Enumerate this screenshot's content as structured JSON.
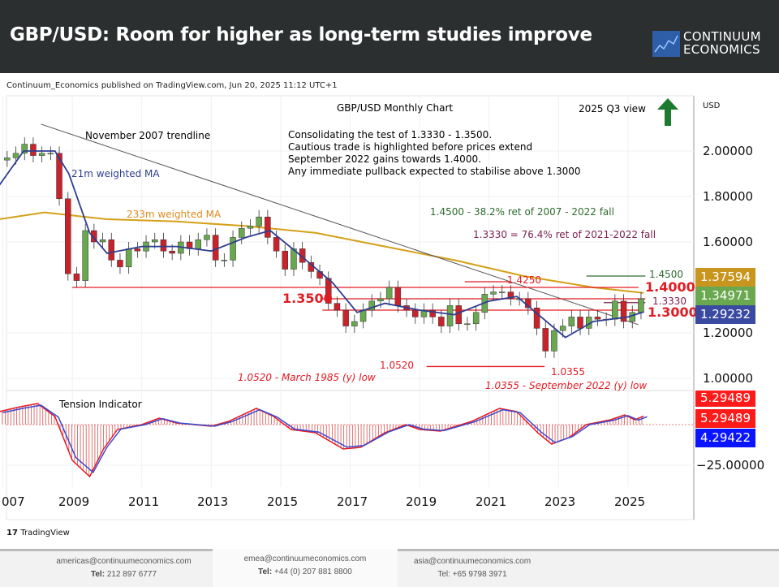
{
  "header": {
    "title": "GBP/USD: Room for higher as long-term studies improve",
    "logo_line1": "CONTINUUM",
    "logo_line2": "ECONOMICS"
  },
  "published": "Continuum_Economics published on TradingView.com, Jun 20, 2025 11:12 UTC+1",
  "footer": {
    "brand": "TradingView",
    "contacts": [
      {
        "email": "americas@continuumeconomics.com",
        "tel_label": "Tel:",
        "tel": "212 897 6777"
      },
      {
        "email": "emea@continuumeconomics.com",
        "tel_label": "Tel:",
        "tel": "+44 (0) 207 881 8800"
      },
      {
        "email": "asia@continuumeconomics.com",
        "tel_label": "Tel:",
        "tel": "+65 9798 3971"
      }
    ]
  },
  "colors": {
    "up": "#6aa84f",
    "down": "#c8232b",
    "ma21": "#2e3e91",
    "ma233": "#d4a017",
    "level": "#e31b23",
    "green_level": "#2e6b2e",
    "purple_level": "#7a1f4f",
    "arrow": "#1e7a2e"
  },
  "chart_data": {
    "type": "candlestick",
    "title": "GBP/USD Monthly Chart",
    "view_label": "2025 Q3 view",
    "view_direction": "up",
    "currency": "USD",
    "y_ticks": [
      "2.00000",
      "1.80000",
      "1.60000",
      "1.20000",
      "1.00000"
    ],
    "y_tick_values": [
      2.0,
      1.8,
      1.6,
      1.2,
      1.0
    ],
    "x_ticks": [
      "007",
      "2009",
      "2011",
      "2013",
      "2015",
      "2017",
      "2019",
      "2021",
      "2023",
      "2025"
    ],
    "x_tick_values": [
      2007,
      2009,
      2011,
      2013,
      2015,
      2017,
      2019,
      2021,
      2023,
      2025
    ],
    "grid": true,
    "closes_quarterly": {
      "start": 2007.0,
      "values": [
        1.97,
        1.99,
        2.03,
        1.98,
        1.99,
        1.99,
        1.79,
        1.46,
        1.43,
        1.65,
        1.6,
        1.61,
        1.52,
        1.49,
        1.57,
        1.56,
        1.6,
        1.61,
        1.56,
        1.55,
        1.6,
        1.57,
        1.61,
        1.63,
        1.52,
        1.52,
        1.62,
        1.66,
        1.67,
        1.71,
        1.62,
        1.56,
        1.48,
        1.57,
        1.51,
        1.47,
        1.44,
        1.33,
        1.3,
        1.23,
        1.25,
        1.3,
        1.34,
        1.35,
        1.4,
        1.32,
        1.3,
        1.27,
        1.3,
        1.27,
        1.23,
        1.32,
        1.24,
        1.24,
        1.29,
        1.37,
        1.38,
        1.38,
        1.35,
        1.35,
        1.31,
        1.22,
        1.12,
        1.21,
        1.23,
        1.27,
        1.22,
        1.27,
        1.26,
        1.26,
        1.34,
        1.25,
        1.29,
        1.35
      ]
    },
    "ma21": {
      "label": "21m weighted MA",
      "points": [
        [
          2006.9,
          1.85
        ],
        [
          2007.6,
          2.0
        ],
        [
          2008.5,
          2.0
        ],
        [
          2008.9,
          1.9
        ],
        [
          2009.5,
          1.64
        ],
        [
          2010,
          1.55
        ],
        [
          2011,
          1.58
        ],
        [
          2012,
          1.58
        ],
        [
          2013,
          1.56
        ],
        [
          2014,
          1.62
        ],
        [
          2014.7,
          1.65
        ],
        [
          2015.5,
          1.55
        ],
        [
          2016.5,
          1.42
        ],
        [
          2017.2,
          1.29
        ],
        [
          2018,
          1.33
        ],
        [
          2019,
          1.3
        ],
        [
          2020,
          1.28
        ],
        [
          2021,
          1.34
        ],
        [
          2021.8,
          1.36
        ],
        [
          2022.5,
          1.27
        ],
        [
          2023.2,
          1.18
        ],
        [
          2024,
          1.25
        ],
        [
          2025,
          1.27
        ],
        [
          2025.45,
          1.292
        ]
      ]
    },
    "ma233": {
      "label": "233m weighted MA",
      "points": [
        [
          2006.9,
          1.7
        ],
        [
          2008.2,
          1.73
        ],
        [
          2010,
          1.7
        ],
        [
          2012,
          1.69
        ],
        [
          2014,
          1.67
        ],
        [
          2016,
          1.64
        ],
        [
          2018,
          1.58
        ],
        [
          2020,
          1.52
        ],
        [
          2022,
          1.45
        ],
        [
          2024,
          1.4
        ],
        [
          2025.45,
          1.376
        ]
      ]
    },
    "trendline": {
      "label": "November 2007 trendline",
      "from": [
        2008.1,
        2.118
      ],
      "to": [
        2025.3,
        1.236
      ]
    },
    "levels": [
      {
        "price": 1.4,
        "label": "1.4000"
      },
      {
        "price": 1.35,
        "label": "1.3500"
      },
      {
        "price": 1.3,
        "label": "1.3000"
      },
      {
        "price": 1.45,
        "label": "1.4500"
      },
      {
        "price": 1.425,
        "label": "1.4250"
      },
      {
        "price": 1.333,
        "label": "1.3330"
      },
      {
        "price": 1.052,
        "label": "1.0520"
      },
      {
        "price": 1.0355,
        "label": "1.0355"
      }
    ],
    "price_tags": [
      "1.37594",
      "1.34971",
      "1.29232"
    ],
    "annotations": {
      "commentary": [
        "Consolidating the test of 1.3330 - 1.3500.",
        "Cautious trade is highlighted before prices extend",
        "September 2022 gains towards 1.4000.",
        "Any immediate pullback expected to stabilise above 1.3000"
      ],
      "fib1": "1.4500 - 38.2% ret of 2007 - 2022 fall",
      "fib2": "1.3330 = 76.4% ret of 2021-2022 fall",
      "low1985": "1.0520 - March 1985 (y) low",
      "low2022": "1.0355 - September 2022 (y) low"
    },
    "indicator": {
      "label": "Tension Indicator",
      "y_tick": "−25.00000",
      "tags": [
        "5.29489",
        "5.29489",
        "4.29422"
      ],
      "points": [
        [
          2006.9,
          8
        ],
        [
          2007.5,
          11
        ],
        [
          2008.0,
          13
        ],
        [
          2008.5,
          5
        ],
        [
          2009.0,
          -22
        ],
        [
          2009.5,
          -32
        ],
        [
          2009.9,
          -15
        ],
        [
          2010.3,
          -3
        ],
        [
          2011.0,
          0
        ],
        [
          2011.5,
          4
        ],
        [
          2012,
          1
        ],
        [
          2012.5,
          0
        ],
        [
          2013,
          -1
        ],
        [
          2013.5,
          2
        ],
        [
          2014.3,
          10
        ],
        [
          2014.8,
          5
        ],
        [
          2015.3,
          -3
        ],
        [
          2016,
          -5
        ],
        [
          2016.8,
          -15
        ],
        [
          2017.3,
          -14
        ],
        [
          2018,
          -5
        ],
        [
          2018.6,
          0
        ],
        [
          2019,
          -3
        ],
        [
          2019.6,
          -4
        ],
        [
          2020.5,
          2
        ],
        [
          2021.3,
          10
        ],
        [
          2021.8,
          8
        ],
        [
          2022.4,
          -5
        ],
        [
          2022.8,
          -12
        ],
        [
          2023.3,
          -8
        ],
        [
          2023.8,
          0
        ],
        [
          2024.5,
          3
        ],
        [
          2024.9,
          6
        ],
        [
          2025.2,
          3
        ],
        [
          2025.45,
          5.3
        ]
      ]
    }
  }
}
